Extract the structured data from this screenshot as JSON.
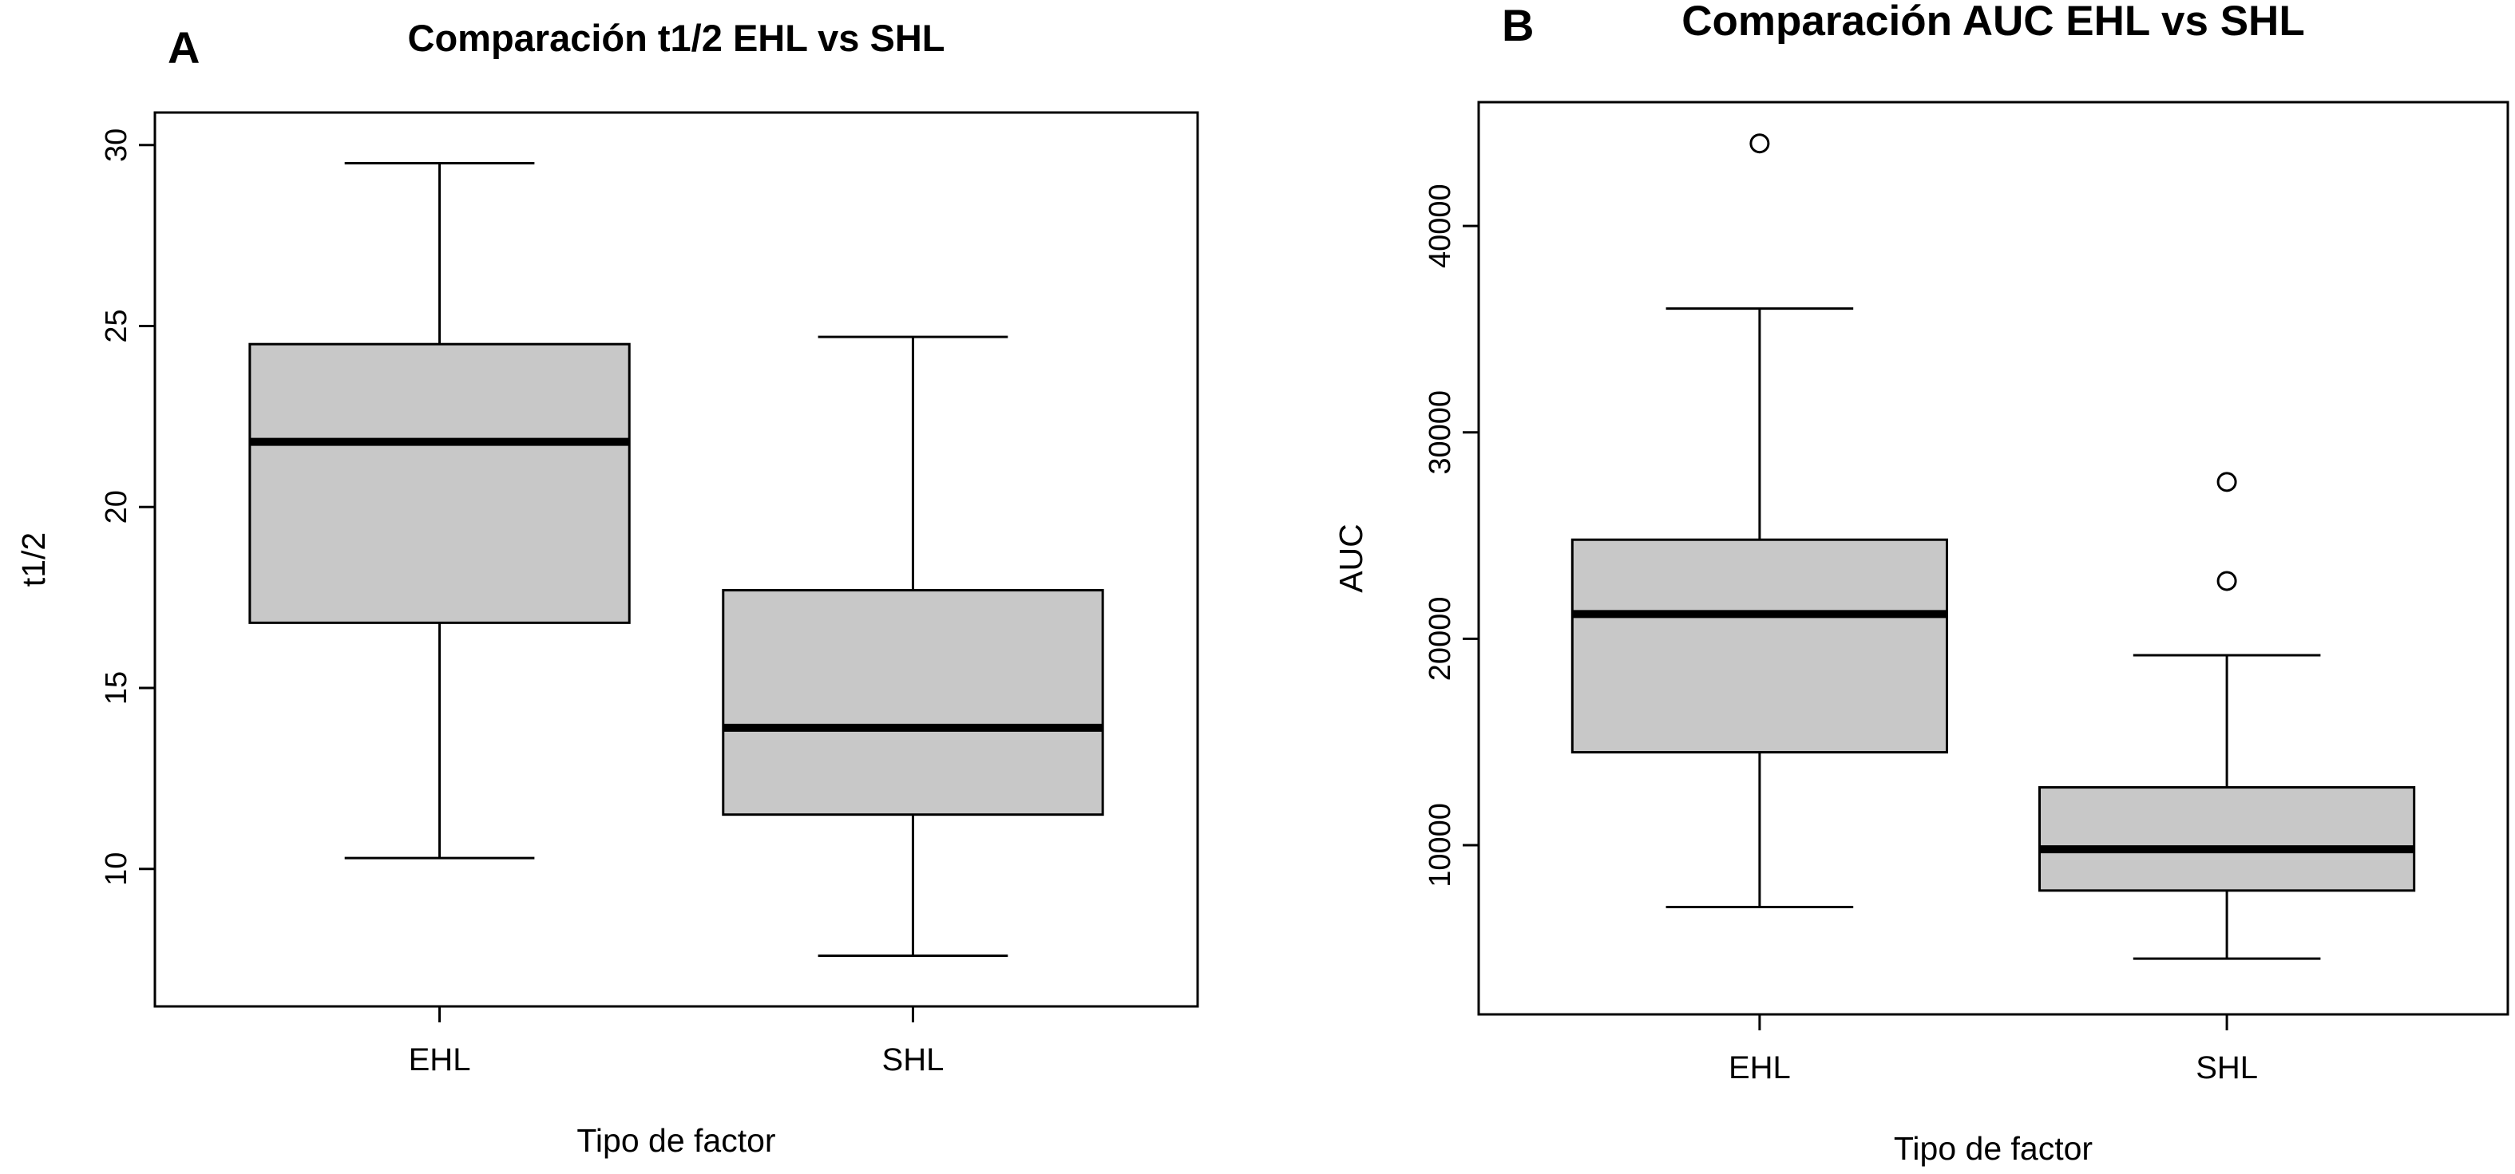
{
  "figure": {
    "background": "#ffffff",
    "line_color": "#000000"
  },
  "chart_data": [
    {
      "type": "boxplot",
      "panel_label": "A",
      "title": "Comparación t1/2 EHL vs SHL",
      "xlabel": "Tipo de factor",
      "ylabel": "t1/2",
      "ylim": [
        6.2,
        30.9
      ],
      "yticks": [
        10,
        15,
        20,
        25,
        30
      ],
      "categories": [
        "EHL",
        "SHL"
      ],
      "box_fill": "#c8c8c8",
      "border_color": "#000000",
      "legend": "none",
      "grid": false,
      "boxes": [
        {
          "category": "EHL",
          "whisker_low": 10.3,
          "q1": 16.8,
          "median": 21.8,
          "q3": 24.5,
          "whisker_high": 29.5,
          "outliers": []
        },
        {
          "category": "SHL",
          "whisker_low": 7.6,
          "q1": 11.5,
          "median": 13.9,
          "q3": 17.7,
          "whisker_high": 24.7,
          "outliers": []
        }
      ]
    },
    {
      "type": "boxplot",
      "panel_label": "B",
      "title": "Comparación AUC EHL vs SHL",
      "xlabel": "Tipo de factor",
      "ylabel": "AUC",
      "ylim": [
        1800,
        46000
      ],
      "yticks": [
        10000,
        20000,
        30000,
        40000
      ],
      "categories": [
        "EHL",
        "SHL"
      ],
      "box_fill": "#c8c8c8",
      "border_color": "#000000",
      "legend": "none",
      "grid": false,
      "boxes": [
        {
          "category": "EHL",
          "whisker_low": 7000,
          "q1": 14500,
          "median": 21200,
          "q3": 24800,
          "whisker_high": 36000,
          "outliers": [
            44000
          ]
        },
        {
          "category": "SHL",
          "whisker_low": 4500,
          "q1": 7800,
          "median": 9800,
          "q3": 12800,
          "whisker_high": 19200,
          "outliers": [
            22800,
            27600
          ]
        }
      ]
    }
  ]
}
